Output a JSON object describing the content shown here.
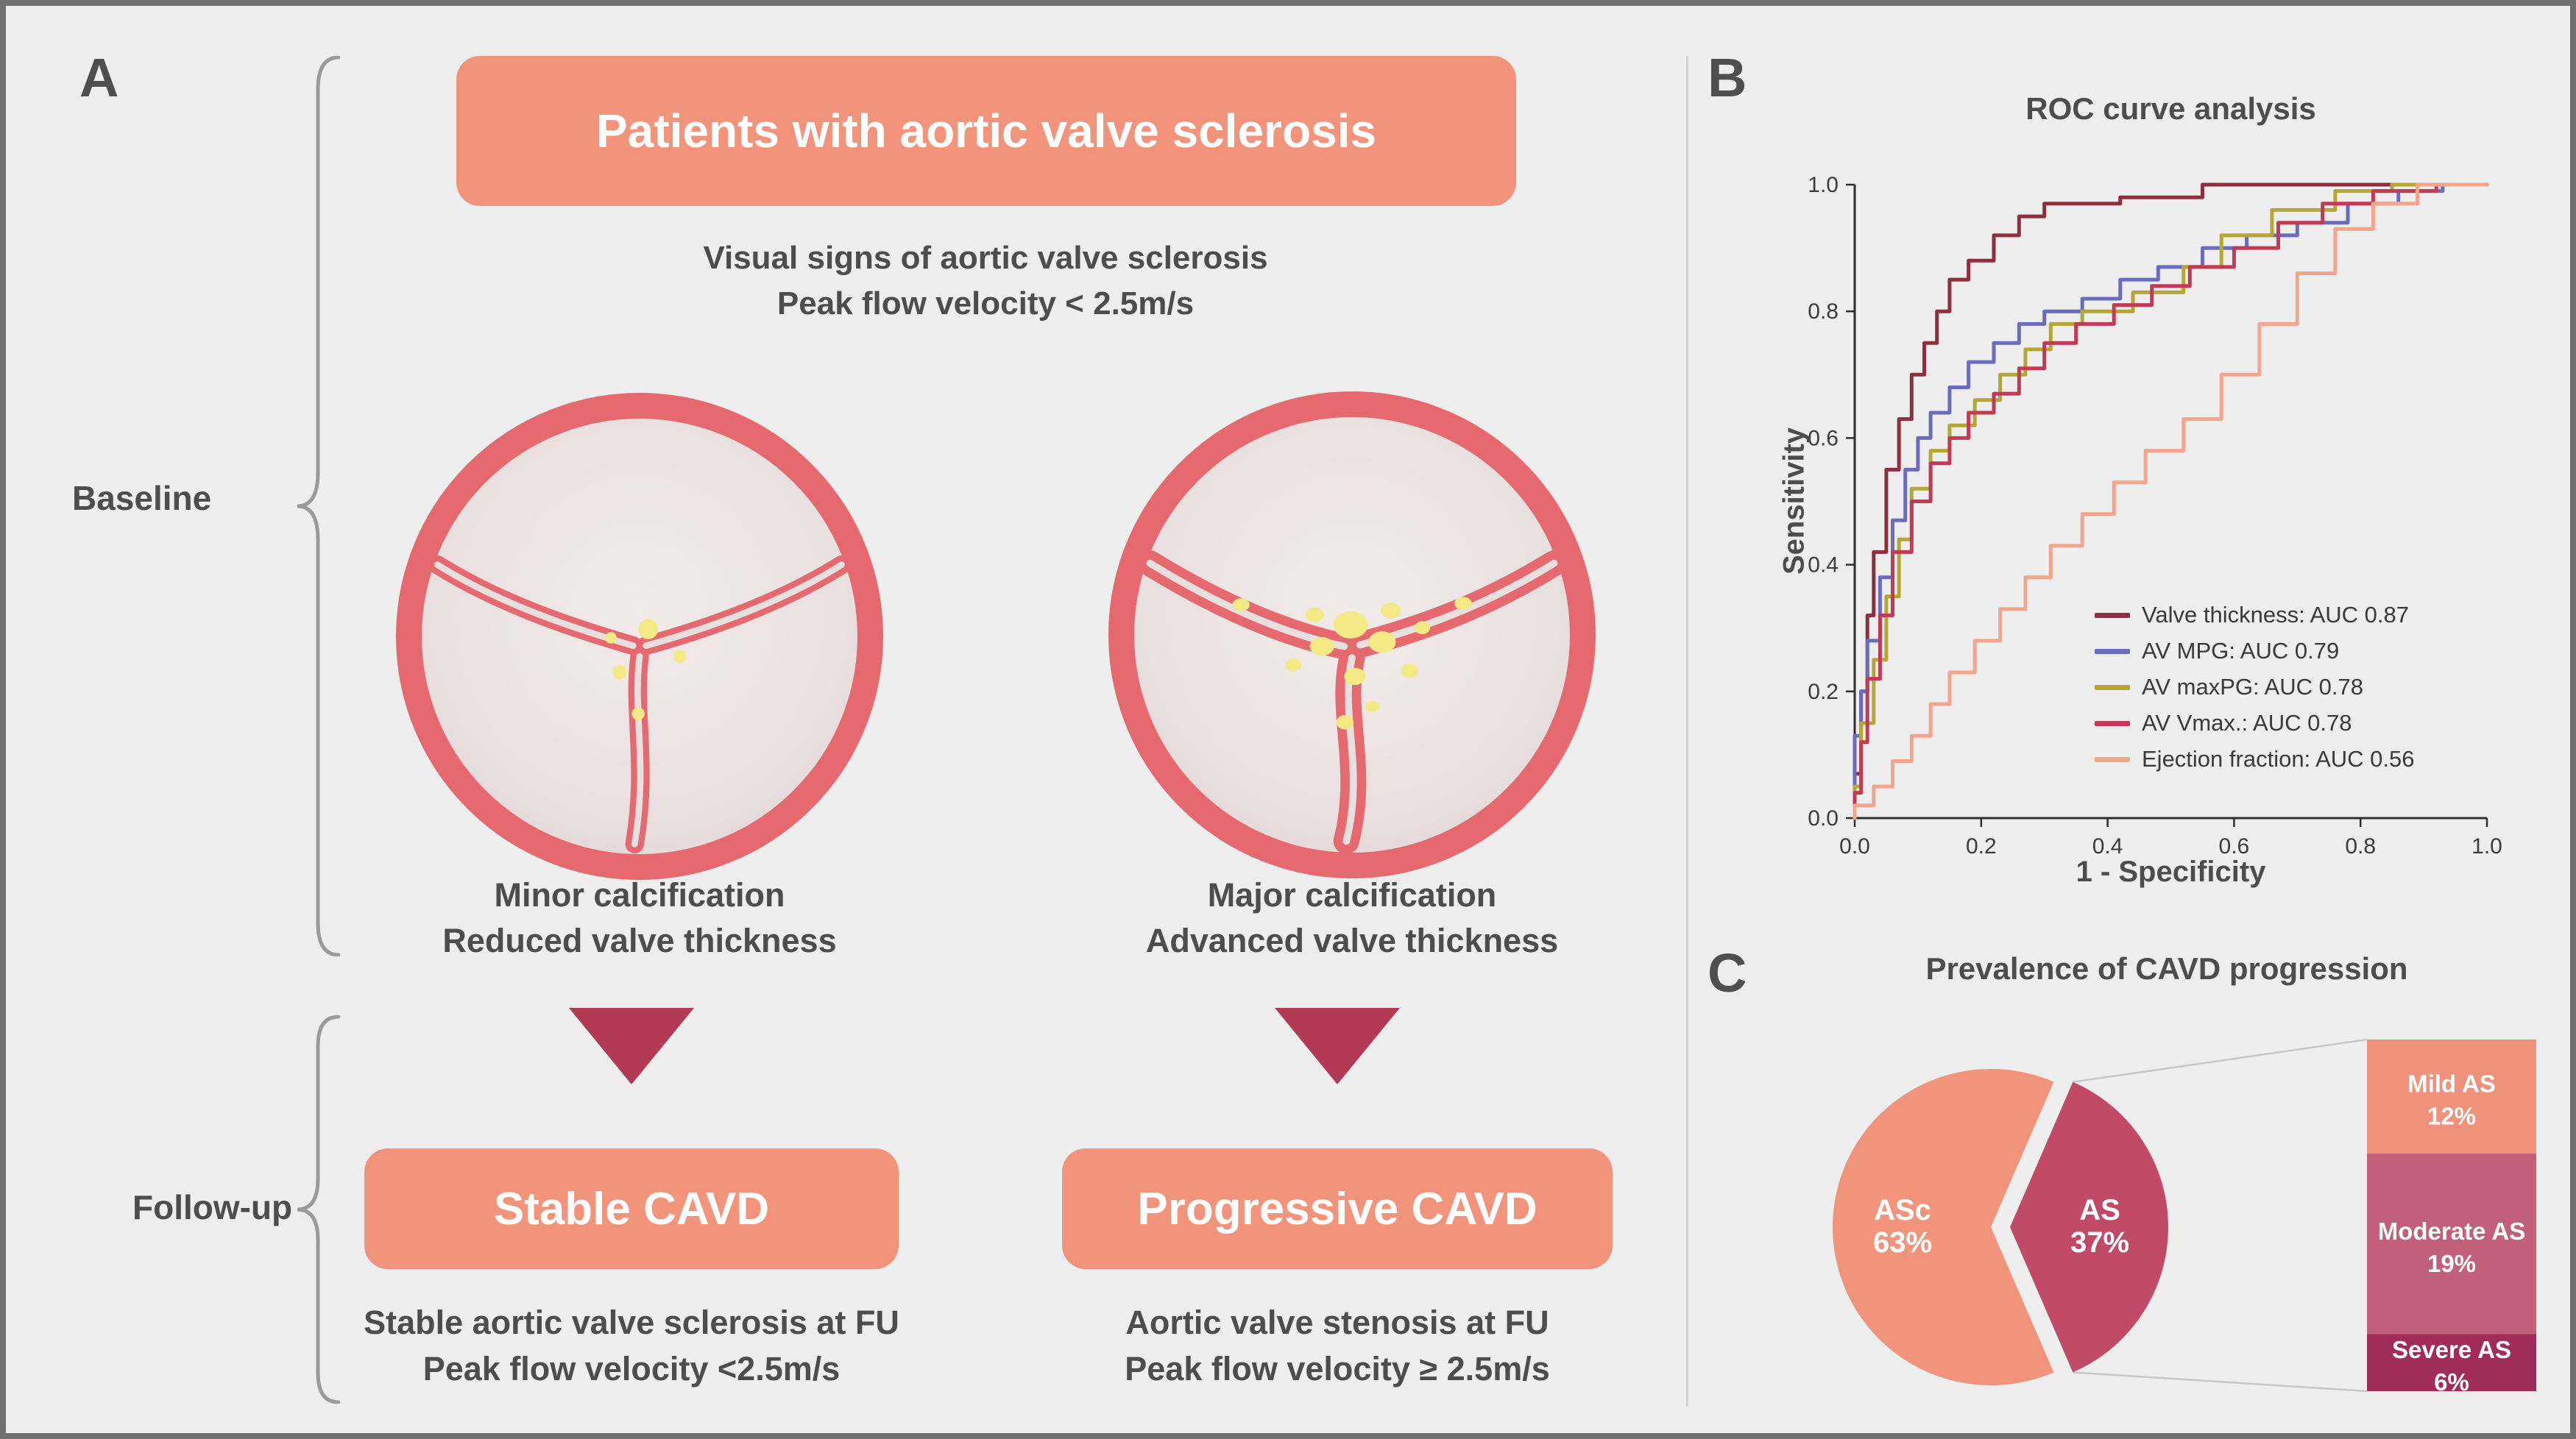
{
  "colors": {
    "background": "#efeeee",
    "border": "#6f6f6f",
    "salmon": "#f2937c",
    "crimson": "#b23a55",
    "text": "#4d4d4d",
    "ring": "#e5696e",
    "valve_inner": "#eadfdf",
    "calcification": "#f3ea85",
    "brace": "#9a9a9a",
    "divider": "#d2d2d2",
    "axis": "#2e2e2e"
  },
  "panel_a": {
    "label": "A",
    "title": "Patients with aortic valve sclerosis",
    "subtitle_line1": "Visual signs of aortic valve sclerosis",
    "subtitle_line2": "Peak flow velocity < 2.5m/s",
    "baseline_label": "Baseline",
    "followup_label": "Follow-up",
    "minor_caption_line1": "Minor calcification",
    "minor_caption_line2": "Reduced valve thickness",
    "major_caption_line1": "Major calcification",
    "major_caption_line2": "Advanced valve thickness",
    "stable_box": "Stable CAVD",
    "progressive_box": "Progressive CAVD",
    "stable_line1": "Stable aortic valve sclerosis at FU",
    "stable_line2": "Peak flow velocity <2.5m/s",
    "progressive_line1": "Aortic valve stenosis at FU",
    "progressive_line2": "Peak flow velocity ≥ 2.5m/s"
  },
  "panel_b": {
    "label": "B",
    "title": "ROC curve analysis",
    "xlabel": "1 - Specificity",
    "ylabel": "Sensitivity"
  },
  "panel_c": {
    "label": "C",
    "title": "Prevalence of CAVD progression"
  },
  "chart_data": [
    {
      "id": "roc",
      "type": "line",
      "title": "ROC curve analysis",
      "xlabel": "1 - Specificity",
      "ylabel": "Sensitivity",
      "xlim": [
        0,
        1
      ],
      "ylim": [
        0,
        1
      ],
      "xticks": [
        "0.0",
        "0.2",
        "0.4",
        "0.6",
        "0.8",
        "1.0"
      ],
      "yticks": [
        "0.0",
        "0.2",
        "0.4",
        "0.6",
        "0.8",
        "1.0"
      ],
      "grid": false,
      "legend_position": "lower right",
      "series": [
        {
          "name": "Valve thickness: AUC 0.87",
          "auc": 0.87,
          "color": "#8e2f3f",
          "points": [
            [
              0,
              0
            ],
            [
              0,
              0.07
            ],
            [
              0.01,
              0.07
            ],
            [
              0.01,
              0.2
            ],
            [
              0.02,
              0.2
            ],
            [
              0.02,
              0.32
            ],
            [
              0.03,
              0.32
            ],
            [
              0.03,
              0.42
            ],
            [
              0.05,
              0.42
            ],
            [
              0.05,
              0.55
            ],
            [
              0.07,
              0.55
            ],
            [
              0.07,
              0.63
            ],
            [
              0.09,
              0.63
            ],
            [
              0.09,
              0.7
            ],
            [
              0.11,
              0.7
            ],
            [
              0.11,
              0.75
            ],
            [
              0.13,
              0.75
            ],
            [
              0.13,
              0.8
            ],
            [
              0.15,
              0.8
            ],
            [
              0.15,
              0.85
            ],
            [
              0.18,
              0.85
            ],
            [
              0.18,
              0.88
            ],
            [
              0.22,
              0.88
            ],
            [
              0.22,
              0.92
            ],
            [
              0.26,
              0.92
            ],
            [
              0.26,
              0.95
            ],
            [
              0.3,
              0.95
            ],
            [
              0.3,
              0.97
            ],
            [
              0.42,
              0.97
            ],
            [
              0.42,
              0.98
            ],
            [
              0.55,
              0.98
            ],
            [
              0.55,
              1
            ],
            [
              1,
              1
            ]
          ]
        },
        {
          "name": "AV MPG: AUC 0.79",
          "auc": 0.79,
          "color": "#6a6cbf",
          "points": [
            [
              0,
              0
            ],
            [
              0,
              0.13
            ],
            [
              0.01,
              0.13
            ],
            [
              0.01,
              0.2
            ],
            [
              0.02,
              0.2
            ],
            [
              0.02,
              0.28
            ],
            [
              0.04,
              0.28
            ],
            [
              0.04,
              0.38
            ],
            [
              0.06,
              0.38
            ],
            [
              0.06,
              0.47
            ],
            [
              0.08,
              0.47
            ],
            [
              0.08,
              0.55
            ],
            [
              0.1,
              0.55
            ],
            [
              0.1,
              0.6
            ],
            [
              0.12,
              0.6
            ],
            [
              0.12,
              0.64
            ],
            [
              0.15,
              0.64
            ],
            [
              0.15,
              0.68
            ],
            [
              0.18,
              0.68
            ],
            [
              0.18,
              0.72
            ],
            [
              0.22,
              0.72
            ],
            [
              0.22,
              0.75
            ],
            [
              0.26,
              0.75
            ],
            [
              0.26,
              0.78
            ],
            [
              0.3,
              0.78
            ],
            [
              0.3,
              0.8
            ],
            [
              0.36,
              0.8
            ],
            [
              0.36,
              0.82
            ],
            [
              0.42,
              0.82
            ],
            [
              0.42,
              0.85
            ],
            [
              0.48,
              0.85
            ],
            [
              0.48,
              0.87
            ],
            [
              0.55,
              0.87
            ],
            [
              0.55,
              0.9
            ],
            [
              0.62,
              0.9
            ],
            [
              0.62,
              0.92
            ],
            [
              0.7,
              0.92
            ],
            [
              0.7,
              0.94
            ],
            [
              0.78,
              0.94
            ],
            [
              0.78,
              0.97
            ],
            [
              0.86,
              0.97
            ],
            [
              0.86,
              0.99
            ],
            [
              0.93,
              0.99
            ],
            [
              0.93,
              1
            ],
            [
              1,
              1
            ]
          ]
        },
        {
          "name": "AV maxPG: AUC 0.78",
          "auc": 0.78,
          "color": "#b5a636",
          "points": [
            [
              0,
              0
            ],
            [
              0,
              0.05
            ],
            [
              0.01,
              0.05
            ],
            [
              0.01,
              0.15
            ],
            [
              0.03,
              0.15
            ],
            [
              0.03,
              0.25
            ],
            [
              0.05,
              0.25
            ],
            [
              0.05,
              0.35
            ],
            [
              0.07,
              0.35
            ],
            [
              0.07,
              0.44
            ],
            [
              0.09,
              0.44
            ],
            [
              0.09,
              0.52
            ],
            [
              0.12,
              0.52
            ],
            [
              0.12,
              0.58
            ],
            [
              0.15,
              0.58
            ],
            [
              0.15,
              0.62
            ],
            [
              0.19,
              0.62
            ],
            [
              0.19,
              0.66
            ],
            [
              0.23,
              0.66
            ],
            [
              0.23,
              0.7
            ],
            [
              0.27,
              0.7
            ],
            [
              0.27,
              0.74
            ],
            [
              0.31,
              0.74
            ],
            [
              0.31,
              0.78
            ],
            [
              0.36,
              0.78
            ],
            [
              0.36,
              0.8
            ],
            [
              0.44,
              0.8
            ],
            [
              0.44,
              0.83
            ],
            [
              0.52,
              0.83
            ],
            [
              0.52,
              0.87
            ],
            [
              0.58,
              0.87
            ],
            [
              0.58,
              0.92
            ],
            [
              0.66,
              0.92
            ],
            [
              0.66,
              0.96
            ],
            [
              0.76,
              0.96
            ],
            [
              0.76,
              0.99
            ],
            [
              0.85,
              0.99
            ],
            [
              0.85,
              1
            ],
            [
              1,
              1
            ]
          ]
        },
        {
          "name": "AV Vmax.: AUC 0.78",
          "auc": 0.78,
          "color": "#c23a54",
          "points": [
            [
              0,
              0
            ],
            [
              0,
              0.04
            ],
            [
              0.01,
              0.04
            ],
            [
              0.01,
              0.12
            ],
            [
              0.02,
              0.12
            ],
            [
              0.02,
              0.22
            ],
            [
              0.04,
              0.22
            ],
            [
              0.04,
              0.32
            ],
            [
              0.06,
              0.32
            ],
            [
              0.06,
              0.42
            ],
            [
              0.09,
              0.42
            ],
            [
              0.09,
              0.5
            ],
            [
              0.12,
              0.5
            ],
            [
              0.12,
              0.56
            ],
            [
              0.15,
              0.56
            ],
            [
              0.15,
              0.6
            ],
            [
              0.18,
              0.6
            ],
            [
              0.18,
              0.64
            ],
            [
              0.22,
              0.64
            ],
            [
              0.22,
              0.67
            ],
            [
              0.26,
              0.67
            ],
            [
              0.26,
              0.71
            ],
            [
              0.3,
              0.71
            ],
            [
              0.3,
              0.75
            ],
            [
              0.35,
              0.75
            ],
            [
              0.35,
              0.78
            ],
            [
              0.41,
              0.78
            ],
            [
              0.41,
              0.81
            ],
            [
              0.47,
              0.81
            ],
            [
              0.47,
              0.84
            ],
            [
              0.53,
              0.84
            ],
            [
              0.53,
              0.87
            ],
            [
              0.6,
              0.87
            ],
            [
              0.6,
              0.9
            ],
            [
              0.67,
              0.9
            ],
            [
              0.67,
              0.94
            ],
            [
              0.74,
              0.94
            ],
            [
              0.74,
              0.97
            ],
            [
              0.82,
              0.97
            ],
            [
              0.82,
              0.99
            ],
            [
              0.92,
              0.99
            ],
            [
              0.92,
              1
            ],
            [
              1,
              1
            ]
          ]
        },
        {
          "name": "Ejection fraction: AUC 0.56",
          "auc": 0.56,
          "color": "#f4a58b",
          "points": [
            [
              0,
              0
            ],
            [
              0,
              0.02
            ],
            [
              0.03,
              0.02
            ],
            [
              0.03,
              0.05
            ],
            [
              0.06,
              0.05
            ],
            [
              0.06,
              0.09
            ],
            [
              0.09,
              0.09
            ],
            [
              0.09,
              0.13
            ],
            [
              0.12,
              0.13
            ],
            [
              0.12,
              0.18
            ],
            [
              0.15,
              0.18
            ],
            [
              0.15,
              0.23
            ],
            [
              0.19,
              0.23
            ],
            [
              0.19,
              0.28
            ],
            [
              0.23,
              0.28
            ],
            [
              0.23,
              0.33
            ],
            [
              0.27,
              0.33
            ],
            [
              0.27,
              0.38
            ],
            [
              0.31,
              0.38
            ],
            [
              0.31,
              0.43
            ],
            [
              0.36,
              0.43
            ],
            [
              0.36,
              0.48
            ],
            [
              0.41,
              0.48
            ],
            [
              0.41,
              0.53
            ],
            [
              0.46,
              0.53
            ],
            [
              0.46,
              0.58
            ],
            [
              0.52,
              0.58
            ],
            [
              0.52,
              0.63
            ],
            [
              0.58,
              0.63
            ],
            [
              0.58,
              0.7
            ],
            [
              0.64,
              0.7
            ],
            [
              0.64,
              0.78
            ],
            [
              0.7,
              0.78
            ],
            [
              0.7,
              0.86
            ],
            [
              0.76,
              0.86
            ],
            [
              0.76,
              0.93
            ],
            [
              0.82,
              0.93
            ],
            [
              0.82,
              0.97
            ],
            [
              0.89,
              0.97
            ],
            [
              0.89,
              1
            ],
            [
              1,
              1
            ]
          ]
        }
      ]
    },
    {
      "id": "prevalence",
      "type": "pie",
      "title": "Prevalence of CAVD progression",
      "slices": [
        {
          "label": "ASc",
          "value": 63,
          "color": "#f2937c",
          "exploded": false
        },
        {
          "label": "AS",
          "value": 37,
          "color": "#c14b66",
          "exploded": true
        }
      ],
      "breakdown": [
        {
          "label": "Mild AS",
          "value": 12,
          "color": "#f0917b"
        },
        {
          "label": "Moderate AS",
          "value": 19,
          "color": "#c2607a"
        },
        {
          "label": "Severe AS",
          "value": 6,
          "color": "#a02d57"
        }
      ]
    }
  ]
}
